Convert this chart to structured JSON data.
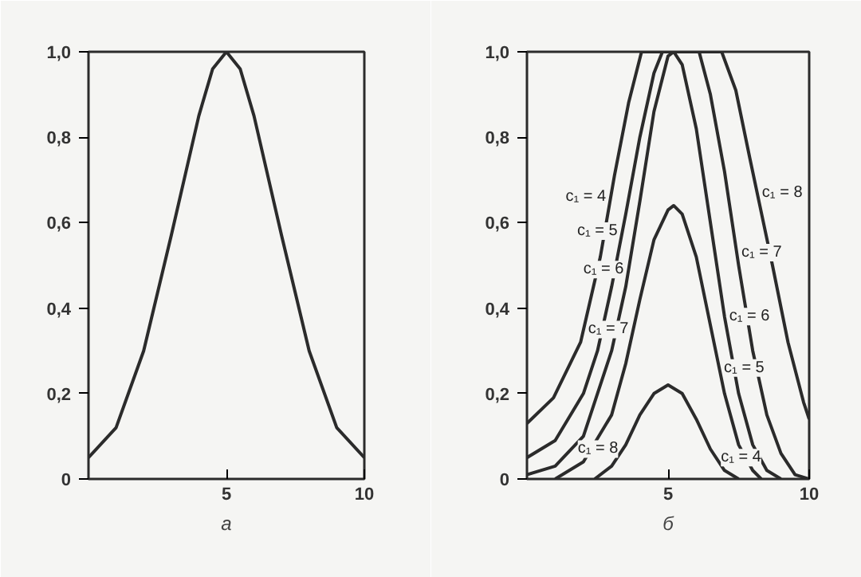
{
  "chart_data": [
    {
      "type": "line",
      "xlabel": "а",
      "x": [
        0,
        1,
        2,
        3,
        4,
        4.5,
        5,
        5.5,
        6,
        7,
        8,
        9,
        10
      ],
      "xlim": [
        0,
        10
      ],
      "ylim": [
        0,
        1
      ],
      "xticks": [
        5,
        10
      ],
      "yticks": [
        0,
        {
          "value": 0.2,
          "label": "0,2"
        },
        {
          "value": 0.4,
          "label": "0,4"
        },
        {
          "value": 0.6,
          "label": "0,6"
        },
        {
          "value": 0.8,
          "label": "0,8"
        },
        {
          "value": 1,
          "label": "1,0"
        }
      ],
      "series": [
        {
          "color": "#2b2b2b",
          "values": [
            0.05,
            0.12,
            0.3,
            0.57,
            0.85,
            0.96,
            1.0,
            0.96,
            0.85,
            0.57,
            0.3,
            0.12,
            0.05
          ]
        }
      ]
    },
    {
      "type": "line",
      "xlabel": "б",
      "xlim": [
        0,
        10
      ],
      "ylim": [
        0,
        1
      ],
      "xticks": [
        5,
        10
      ],
      "yticks": [
        0,
        {
          "value": 0.2,
          "label": "0,2"
        },
        {
          "value": 0.4,
          "label": "0,4"
        },
        {
          "value": 0.6,
          "label": "0,6"
        },
        {
          "value": 0.8,
          "label": "0,8"
        },
        {
          "value": 1,
          "label": "1,0"
        }
      ],
      "series": [
        {
          "color": "#2b2b2b",
          "x": [
            0,
            0.94,
            1.9,
            2.6,
            3.1,
            3.6,
            4.06,
            6.9,
            7.4,
            7.9,
            8.7,
            9.25,
            9.8,
            10
          ],
          "values": [
            0.13,
            0.19,
            0.32,
            0.52,
            0.71,
            0.88,
            1.0,
            1.0,
            0.91,
            0.75,
            0.5,
            0.32,
            0.18,
            0.14
          ]
        },
        {
          "color": "#2b2b2b",
          "x": [
            0,
            1,
            2,
            2.5,
            3,
            3.5,
            4,
            4.5,
            4.8,
            6.1,
            6.5,
            7,
            7.5,
            8,
            8.5,
            9,
            9.5,
            10
          ],
          "values": [
            0.05,
            0.09,
            0.2,
            0.3,
            0.45,
            0.62,
            0.8,
            0.95,
            1.0,
            1.0,
            0.9,
            0.72,
            0.5,
            0.3,
            0.15,
            0.06,
            0.01,
            0
          ]
        },
        {
          "color": "#2b2b2b",
          "x": [
            0,
            1,
            2,
            3,
            3.5,
            4,
            4.5,
            5,
            5.2,
            5.5,
            6,
            6.5,
            7,
            7.5,
            8,
            8.5,
            9
          ],
          "values": [
            0.01,
            0.03,
            0.1,
            0.3,
            0.45,
            0.65,
            0.86,
            0.99,
            1.0,
            0.97,
            0.82,
            0.6,
            0.38,
            0.2,
            0.08,
            0.02,
            0
          ]
        },
        {
          "color": "#2b2b2b",
          "x": [
            1,
            2,
            3,
            3.5,
            4,
            4.5,
            5,
            5.2,
            5.5,
            6,
            6.5,
            7,
            7.5,
            8,
            8.3
          ],
          "values": [
            0,
            0.04,
            0.15,
            0.27,
            0.42,
            0.56,
            0.63,
            0.64,
            0.62,
            0.52,
            0.36,
            0.2,
            0.08,
            0.02,
            0
          ]
        },
        {
          "color": "#2b2b2b",
          "x": [
            2.4,
            3,
            3.5,
            4,
            4.5,
            5,
            5.5,
            6,
            6.5,
            7,
            7.5
          ],
          "values": [
            0,
            0.03,
            0.08,
            0.15,
            0.2,
            0.22,
            0.2,
            0.14,
            0.07,
            0.02,
            0
          ]
        }
      ],
      "annotations": [
        {
          "text": "c₁ = 4",
          "x": 2.97,
          "y": 0.66
        },
        {
          "text": "c₁ = 5",
          "x": 3.38,
          "y": 0.58
        },
        {
          "text": "c₁ = 6",
          "x": 3.6,
          "y": 0.49
        },
        {
          "text": "c₁ = 7",
          "x": 3.77,
          "y": 0.35
        },
        {
          "text": "c₁ = 8",
          "x": 3.4,
          "y": 0.07
        },
        {
          "text": "c₁ = 8",
          "x": 8.16,
          "y": 0.67
        },
        {
          "text": "c₁ = 7",
          "x": 7.43,
          "y": 0.53
        },
        {
          "text": "c₁ = 6",
          "x": 7.0,
          "y": 0.38
        },
        {
          "text": "c₁ = 5",
          "x": 6.81,
          "y": 0.26
        },
        {
          "text": "c₁ = 4",
          "x": 6.7,
          "y": 0.05
        }
      ]
    }
  ]
}
